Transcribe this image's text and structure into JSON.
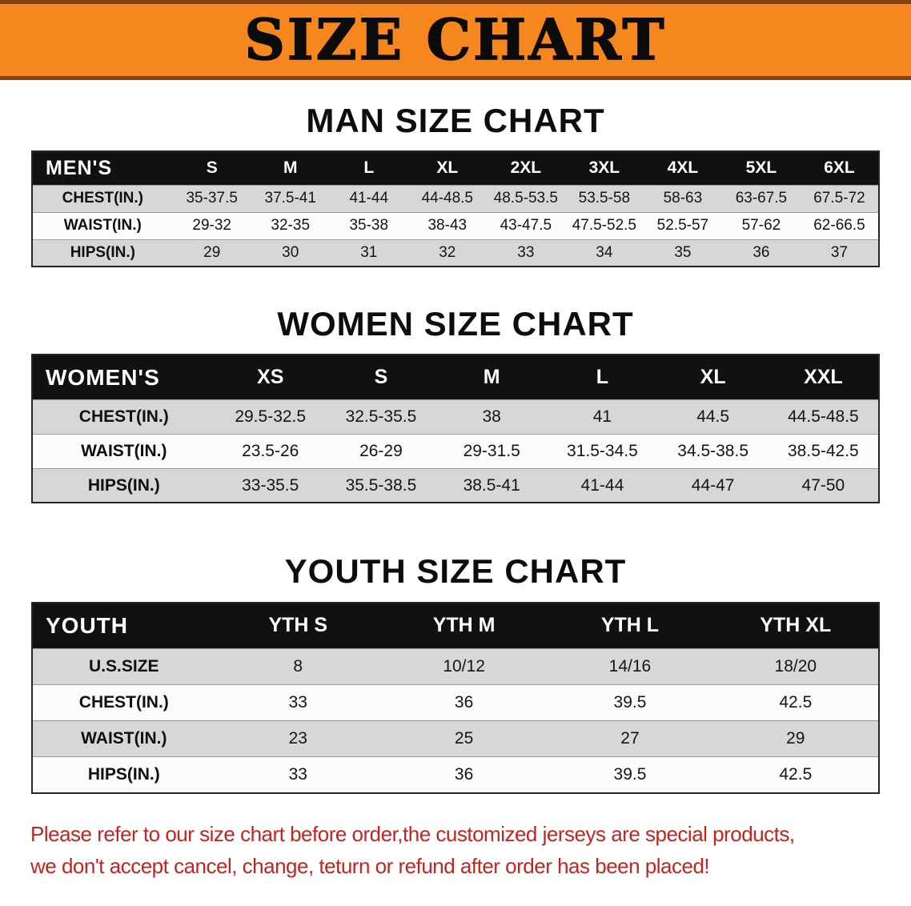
{
  "banner": {
    "title": "SIZE CHART",
    "bg_color": "#f6861e"
  },
  "chart_data": [
    {
      "type": "table",
      "title": "MAN SIZE CHART",
      "corner_label": "MEN'S",
      "columns": [
        "S",
        "M",
        "L",
        "XL",
        "2XL",
        "3XL",
        "4XL",
        "5XL",
        "6XL"
      ],
      "rows": [
        {
          "label": "CHEST(IN.)",
          "values": [
            "35-37.5",
            "37.5-41",
            "41-44",
            "44-48.5",
            "48.5-53.5",
            "53.5-58",
            "58-63",
            "63-67.5",
            "67.5-72"
          ]
        },
        {
          "label": "WAIST(IN.)",
          "values": [
            "29-32",
            "32-35",
            "35-38",
            "38-43",
            "43-47.5",
            "47.5-52.5",
            "52.5-57",
            "57-62",
            "62-66.5"
          ]
        },
        {
          "label": "HIPS(IN.)",
          "values": [
            "29",
            "30",
            "31",
            "32",
            "33",
            "34",
            "35",
            "36",
            "37"
          ]
        }
      ]
    },
    {
      "type": "table",
      "title": "WOMEN SIZE CHART",
      "corner_label": "WOMEN'S",
      "columns": [
        "XS",
        "S",
        "M",
        "L",
        "XL",
        "XXL"
      ],
      "rows": [
        {
          "label": "CHEST(IN.)",
          "values": [
            "29.5-32.5",
            "32.5-35.5",
            "38",
            "41",
            "44.5",
            "44.5-48.5"
          ]
        },
        {
          "label": "WAIST(IN.)",
          "values": [
            "23.5-26",
            "26-29",
            "29-31.5",
            "31.5-34.5",
            "34.5-38.5",
            "38.5-42.5"
          ]
        },
        {
          "label": "HIPS(IN.)",
          "values": [
            "33-35.5",
            "35.5-38.5",
            "38.5-41",
            "41-44",
            "44-47",
            "47-50"
          ]
        }
      ]
    },
    {
      "type": "table",
      "title": "YOUTH SIZE CHART",
      "corner_label": "YOUTH",
      "columns": [
        "YTH S",
        "YTH M",
        "YTH L",
        "YTH XL"
      ],
      "rows": [
        {
          "label": "U.S.SIZE",
          "values": [
            "8",
            "10/12",
            "14/16",
            "18/20"
          ]
        },
        {
          "label": "CHEST(IN.)",
          "values": [
            "33",
            "36",
            "39.5",
            "42.5"
          ]
        },
        {
          "label": "WAIST(IN.)",
          "values": [
            "23",
            "25",
            "27",
            "29"
          ]
        },
        {
          "label": "HIPS(IN.)",
          "values": [
            "33",
            "36",
            "39.5",
            "42.5"
          ]
        }
      ]
    }
  ],
  "footer": {
    "color": "#c32421",
    "lines": [
      "Please refer to our size chart before order,the customized jerseys are special products,",
      "we don't accept cancel, change, teturn or refund after order has been placed!"
    ]
  }
}
